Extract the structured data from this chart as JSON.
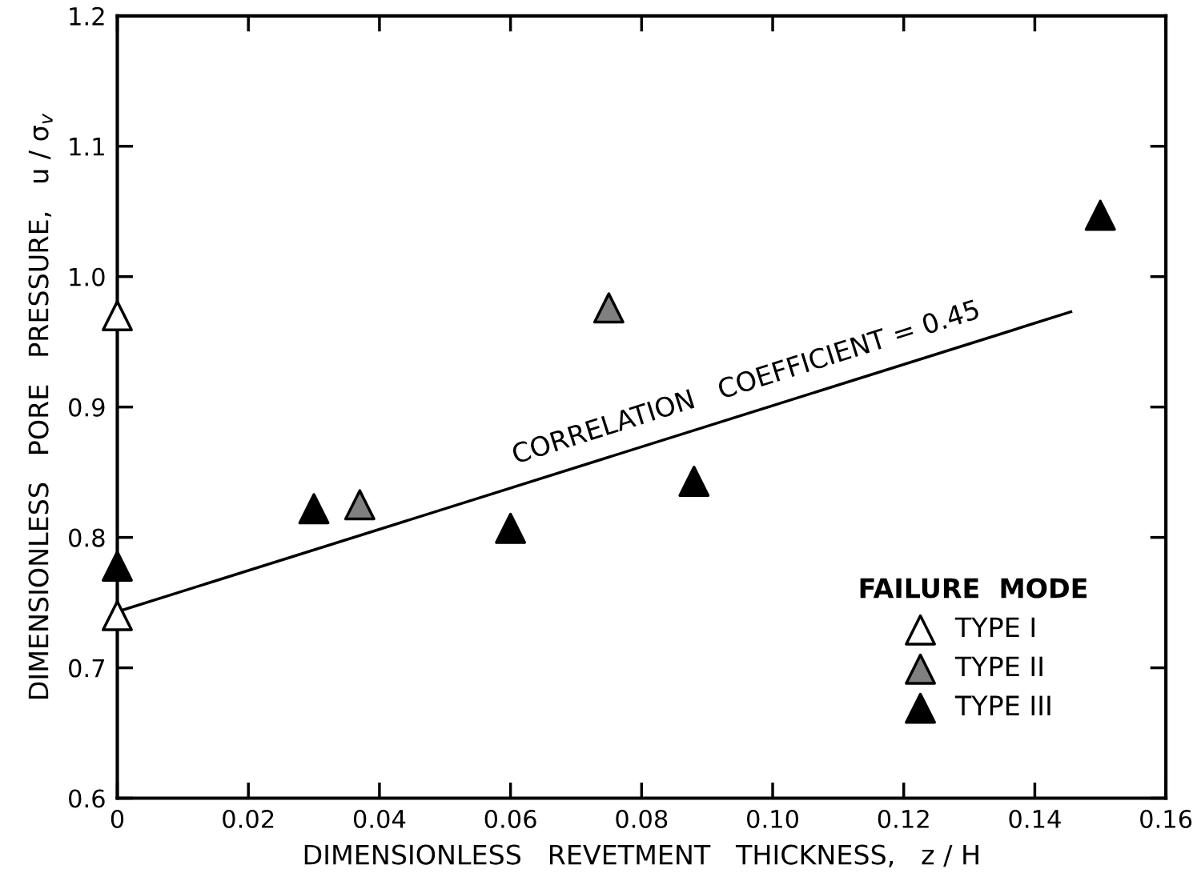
{
  "chart_data": {
    "type": "scatter",
    "xlabel": "DIMENSIONLESS   REVETMENT   THICKNESS,   z / H",
    "ylabel": "DIMENSIONLESS   PORE   PRESSURE,   u / σ$_{v}$",
    "legend_title": "FAILURE  MODE",
    "legend": "bottom right",
    "marker": "triangle",
    "grid": false,
    "xlim": [
      0,
      0.16
    ],
    "xticks": [
      0,
      0.02,
      0.04,
      0.06,
      0.08,
      {
        "value": 0.1,
        "label": "0.10"
      },
      0.12,
      0.14,
      0.16
    ],
    "ylim": [
      0.6,
      1.2
    ],
    "yticks": [
      0.6,
      0.7,
      0.8,
      0.9,
      {
        "value": 1.0,
        "label": "1.0"
      },
      1.1,
      1.2
    ],
    "annotations": [
      "CORRELATION   COEFFICIENT = 0.45"
    ],
    "series": [
      {
        "name": "TYPE I",
        "color": "#ffffff",
        "x": [
          0,
          0
        ],
        "values": [
          0.97,
          0.74
        ]
      },
      {
        "name": "TYPE II",
        "color": "#808080",
        "x": [
          0.037,
          0.075
        ],
        "values": [
          0.825,
          0.976
        ]
      },
      {
        "name": "TYPE III",
        "color": "#000000",
        "x": [
          0,
          0.03,
          0.06,
          0.088,
          0.15
        ],
        "values": [
          0.778,
          0.822,
          0.807,
          0.843,
          1.047
        ]
      },
      {
        "type": "line",
        "marker": "none",
        "color": "#000000",
        "x": [
          0,
          0.1455
        ],
        "values": [
          0.743,
          0.973
        ]
      }
    ]
  }
}
